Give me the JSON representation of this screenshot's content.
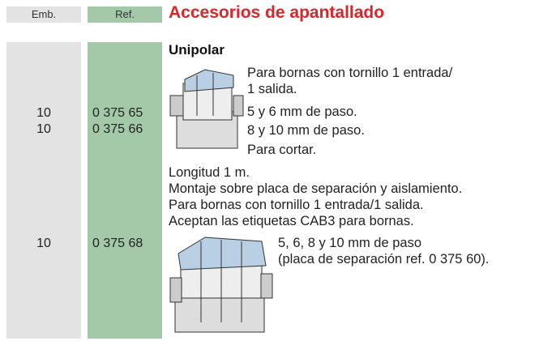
{
  "header": {
    "emb": "Emb.",
    "ref": "Ref.",
    "title": "Accesorios de apantallado"
  },
  "section_title": "Unipolar",
  "rows": [
    {
      "emb": "10",
      "ref": "0 375 65"
    },
    {
      "emb": "10",
      "ref": "0 375 66"
    },
    {
      "emb": "10",
      "ref": "0 375 68"
    }
  ],
  "product1": {
    "lines": [
      "Para bornas con tornillo 1 entrada/",
      "1 salida.",
      "5 y 6 mm de paso.",
      "8 y 10 mm de paso.",
      "Para cortar."
    ]
  },
  "product2": {
    "intro": [
      "Longitud 1 m.",
      "Montaje sobre placa de separación y aislamiento.",
      "Para bornas con tornillo 1 entrada/1 salida.",
      "Aceptan las etiquetas CAB3 para bornas."
    ],
    "lines": [
      "5, 6, 8 y 10 mm de paso",
      "(placa de separación ref. 0 375 60)."
    ]
  }
}
